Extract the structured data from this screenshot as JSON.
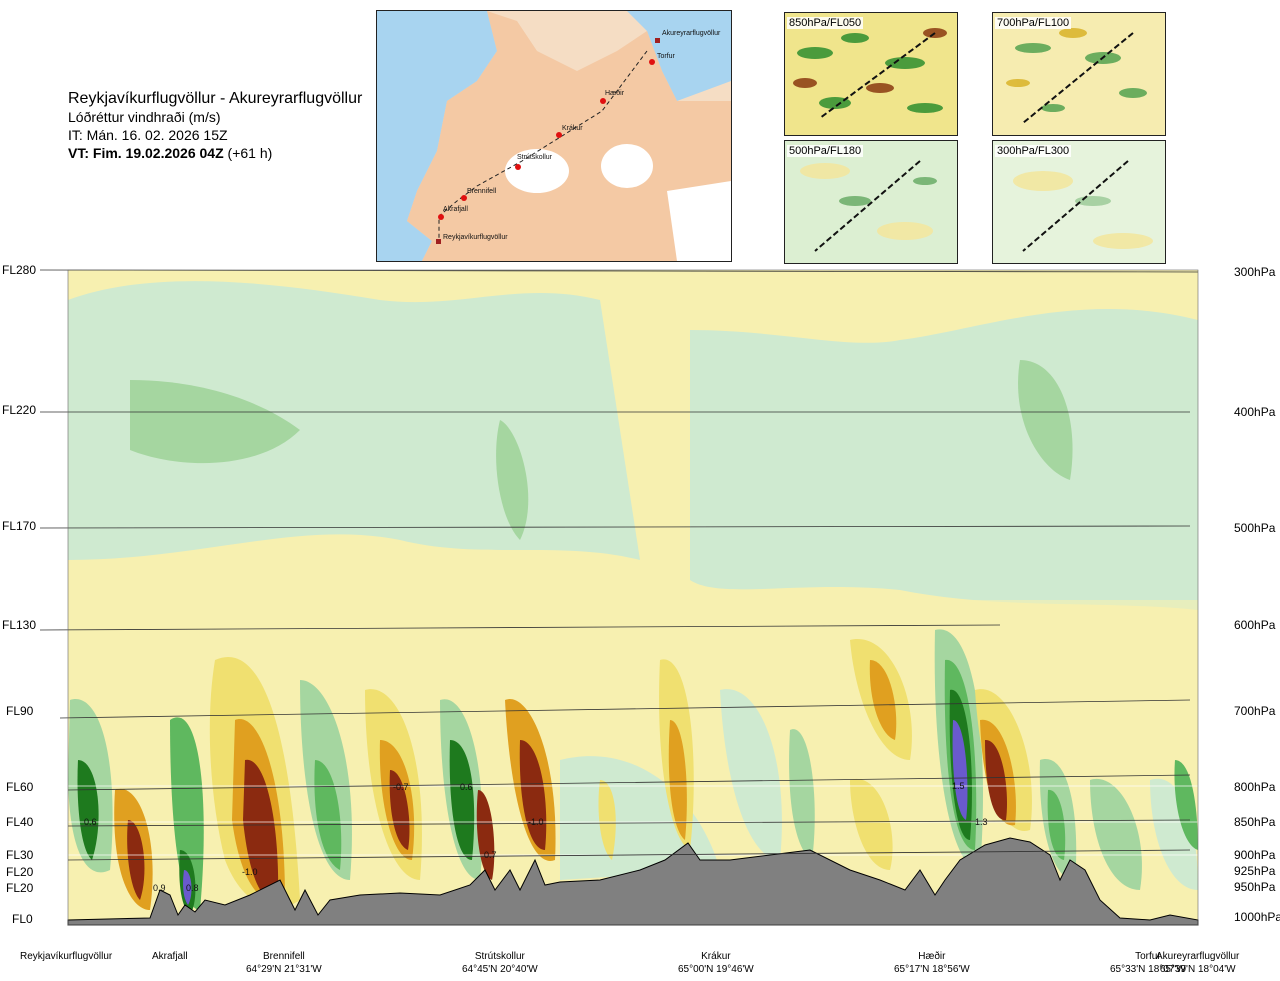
{
  "header": {
    "route": "Reykjavíkurflugvöllur - Akureyrarflugvöllur",
    "field": "Lóðréttur vindhraði (m/s)",
    "issue_time": "IT: Mán. 16. 02. 2026 15Z",
    "valid_time_bold": "VT: Fim. 19.02.2026 04Z",
    "valid_offset": "(+61 h)"
  },
  "route_map": {
    "waypoints": [
      "Akureyrarflugvöllur",
      "Torfur",
      "Hæðir",
      "Krákur",
      "Strútskollur",
      "Brennifell",
      "Akrafjall",
      "Reykjavíkurflugvöllur"
    ]
  },
  "mini_maps": [
    {
      "label": "850hPa/FL050"
    },
    {
      "label": "700hPa/FL100"
    },
    {
      "label": "500hPa/FL180"
    },
    {
      "label": "300hPa/FL300"
    }
  ],
  "flight_levels": [
    "FL280",
    "FL220",
    "FL170",
    "FL130",
    "FL90",
    "FL60",
    "FL40",
    "FL30",
    "FL20",
    "FL20",
    "FL0"
  ],
  "pressure_levels": [
    "300hPa",
    "400hPa",
    "500hPa",
    "600hPa",
    "700hPa",
    "800hPa",
    "850hPa",
    "900hPa",
    "925hPa",
    "950hPa",
    "1000hPa"
  ],
  "value_labels": [
    "0.6",
    "0.9",
    "0.8",
    "-1.0",
    "-0.7",
    "0.6",
    "-1.0",
    "0.7",
    "1.5",
    "1.3"
  ],
  "locations": [
    {
      "name": "Reykjavíkurflugvöllur",
      "coord": ""
    },
    {
      "name": "Akrafjall",
      "coord": ""
    },
    {
      "name": "Brennifell",
      "coord": "64°29'N 21°31'W"
    },
    {
      "name": "Strútskollur",
      "coord": "64°45'N 20°40'W"
    },
    {
      "name": "Krákur",
      "coord": "65°00'N 19°46'W"
    },
    {
      "name": "Hæðir",
      "coord": "65°17'N 18°56'W"
    },
    {
      "name": "Torfur",
      "coord": "65°33'N 18°07'W"
    },
    {
      "name": "Akureyrarflugvöllur",
      "coord": "65°39'N 18°04'W"
    }
  ],
  "colors": {
    "strong_up": "#6a5acd",
    "up_dark": "#1e7a1e",
    "up_mid": "#5fb85f",
    "up_light": "#a5d6a0",
    "neutral_up": "#cfead0",
    "neutral_down": "#f7f0b0",
    "down_light": "#f0e070",
    "down_mid": "#e0a020",
    "down_dark": "#8b2a10",
    "terrain": "#808080",
    "water": "#a8d4f0",
    "land": "#f3c8a0"
  }
}
